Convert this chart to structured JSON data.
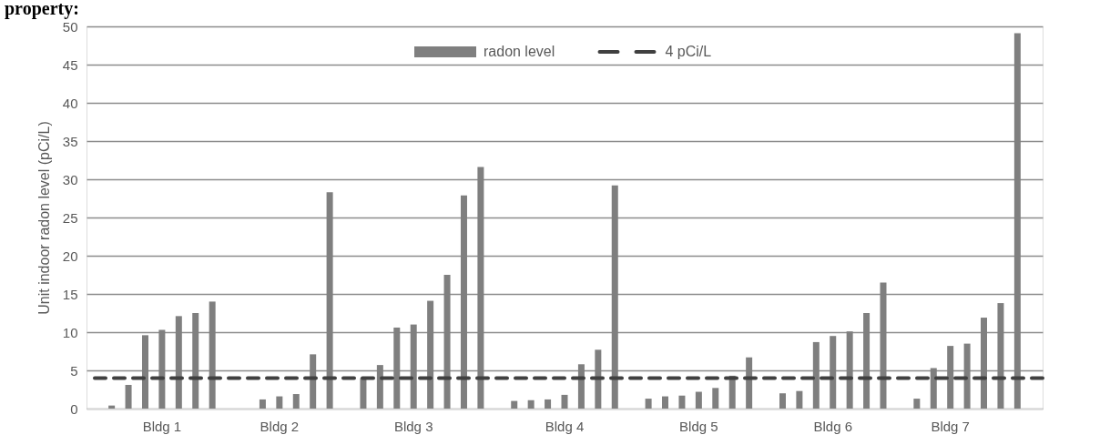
{
  "chart_data": {
    "type": "bar",
    "title": "property:",
    "ylabel": "Unit indoor radon level (pCi/L)",
    "categories": [
      null,
      null,
      null,
      "Bldg 1",
      null,
      null,
      null,
      null,
      null,
      null,
      "Bldg 2",
      null,
      null,
      null,
      null,
      null,
      null,
      null,
      "Bldg 3",
      null,
      null,
      null,
      null,
      null,
      null,
      null,
      null,
      "Bldg 4",
      null,
      null,
      null,
      null,
      null,
      null,
      null,
      "Bldg 5",
      null,
      null,
      null,
      null,
      null,
      null,
      null,
      "Bldg 6",
      null,
      null,
      null,
      null,
      null,
      null,
      "Bldg 7",
      null,
      null,
      null,
      null
    ],
    "series": [
      {
        "name": "radon level",
        "color": "#7f7f7f",
        "values": [
          0.4,
          3.1,
          9.6,
          10.3,
          12.1,
          12.5,
          14.0,
          null,
          0,
          1.2,
          1.6,
          1.9,
          7.1,
          28.3,
          null,
          4.0,
          5.7,
          10.6,
          11.0,
          14.1,
          17.5,
          27.9,
          31.6,
          null,
          1.0,
          1.1,
          1.2,
          1.8,
          5.8,
          7.7,
          29.2,
          null,
          1.3,
          1.6,
          1.7,
          2.2,
          2.7,
          4.3,
          6.7,
          null,
          2.0,
          2.3,
          8.7,
          9.5,
          10.1,
          12.5,
          16.5,
          null,
          1.3,
          5.3,
          8.2,
          8.5,
          11.9,
          13.8,
          49.1
        ]
      }
    ],
    "ref_lines": [
      {
        "axis": "y",
        "value": 4,
        "label": "4 pCi/L",
        "color": "#404040",
        "line_style": "dashed"
      }
    ],
    "ylim": [
      0,
      50
    ],
    "yticks": [
      0,
      5,
      10,
      15,
      20,
      25,
      30,
      35,
      40,
      45,
      50
    ],
    "grid": "y",
    "legend": "top"
  }
}
